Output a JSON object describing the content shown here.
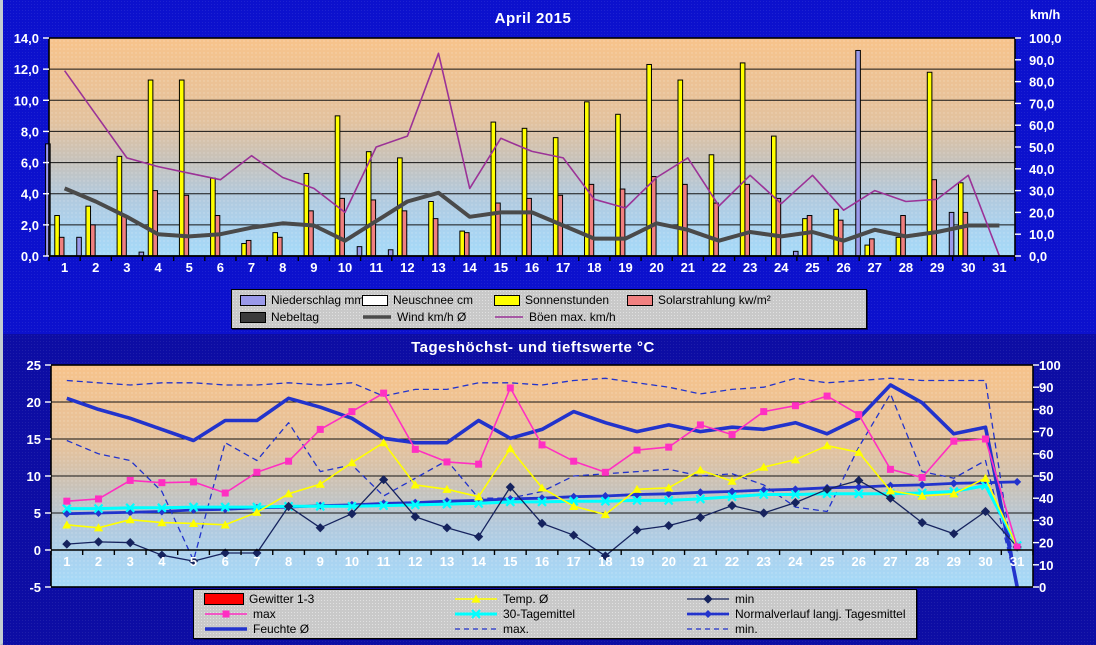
{
  "window": {
    "top_panel_color": "#0c11cd",
    "bottom_panel_color": "#0d0da4",
    "title_color": "#ffffff",
    "legend_background": "#c9c9c9"
  },
  "chart_data": [
    {
      "id": "precip-sun-wind",
      "type": "bar",
      "title": "April  2015",
      "right_axis_label": "km/h",
      "x": [
        1,
        2,
        3,
        4,
        5,
        6,
        7,
        8,
        9,
        10,
        11,
        12,
        13,
        14,
        15,
        16,
        17,
        18,
        19,
        20,
        21,
        22,
        23,
        24,
        25,
        26,
        27,
        28,
        29,
        30,
        31
      ],
      "axes": {
        "left": {
          "range": [
            0,
            14
          ],
          "step": 2,
          "labels": [
            "14,0",
            "12,0",
            "10,0",
            "8,0",
            "6,0",
            "4,0",
            "2,0",
            "0,0"
          ]
        },
        "right": {
          "range": [
            0,
            100
          ],
          "step": 10,
          "labels": [
            "100,0",
            "90,0",
            "80,0",
            "70,0",
            "60,0",
            "50,0",
            "40,0",
            "30,0",
            "20,0",
            "10,0",
            "0,0"
          ]
        }
      },
      "series": [
        {
          "name": "Niederschlag mm",
          "type": "bar",
          "axis": "left",
          "color": "#9a99ea",
          "values": [
            7.2,
            1.2,
            0,
            0.25,
            0,
            0,
            0,
            0,
            0,
            0,
            0.6,
            0.4,
            0,
            0,
            0,
            0,
            0,
            0,
            0,
            0,
            0,
            0,
            0,
            0,
            0.3,
            0,
            13.2,
            0,
            0,
            2.8,
            0
          ]
        },
        {
          "name": "Neuschnee cm",
          "type": "bar",
          "axis": "left",
          "color": "#ffffff",
          "values": [
            0,
            0,
            0,
            0,
            0,
            0,
            0,
            0,
            0,
            0,
            0,
            0,
            0,
            0,
            0,
            0,
            0,
            0,
            0,
            0,
            0,
            0,
            0,
            0,
            0,
            0,
            0,
            0,
            0,
            0,
            0
          ]
        },
        {
          "name": "Sonnenstunden",
          "type": "bar",
          "axis": "left",
          "color": "#ffff00",
          "values": [
            2.6,
            3.2,
            6.4,
            11.3,
            11.3,
            5.0,
            0.8,
            1.5,
            5.3,
            9.0,
            6.7,
            6.3,
            3.5,
            1.6,
            8.6,
            8.2,
            7.6,
            9.9,
            9.1,
            12.3,
            11.3,
            6.5,
            12.4,
            7.7,
            2.4,
            3.0,
            0.7,
            1.2,
            11.8,
            4.7,
            0
          ]
        },
        {
          "name": "Solarstrahlung kw/m²",
          "type": "bar",
          "axis": "left",
          "color": "#f08080",
          "values": [
            1.2,
            2.0,
            2.6,
            4.2,
            3.9,
            2.6,
            1.0,
            1.2,
            2.9,
            3.7,
            3.6,
            2.9,
            2.4,
            1.5,
            3.4,
            3.7,
            3.9,
            4.6,
            4.3,
            5.1,
            4.6,
            3.4,
            4.6,
            3.7,
            2.6,
            2.3,
            1.1,
            2.6,
            4.9,
            2.8,
            0
          ]
        },
        {
          "name": "Nebeltag",
          "type": "bar",
          "axis": "left",
          "color": "#3b3b3b",
          "values": [
            0,
            0,
            0,
            0,
            0,
            0,
            0,
            0,
            0,
            0,
            0,
            0,
            0,
            0,
            0,
            0,
            0,
            0,
            0,
            0,
            0,
            0,
            0,
            0,
            0,
            0,
            0,
            0,
            0,
            0,
            0
          ]
        },
        {
          "name": "Wind km/h Ø",
          "type": "line",
          "axis": "right",
          "color": "#4a4a4a",
          "width": 4,
          "values": [
            31,
            25,
            18,
            10,
            9,
            10,
            13,
            15,
            14,
            7,
            16,
            25,
            29,
            18,
            20,
            20,
            14,
            8,
            8,
            15,
            12,
            7,
            11,
            9,
            11,
            7,
            12,
            9,
            11,
            14,
            14
          ]
        },
        {
          "name": "Böen max. km/h",
          "type": "line",
          "axis": "right",
          "color": "#9b3297",
          "width": 1.6,
          "values": [
            85,
            65,
            45,
            41,
            38,
            35,
            46,
            36,
            31,
            20,
            50,
            55,
            93,
            31,
            54,
            48,
            45,
            26,
            22,
            36,
            45,
            23,
            37,
            24,
            37,
            21,
            30,
            25,
            26,
            37,
            0
          ]
        }
      ],
      "legend_rows": [
        [
          0,
          1,
          2,
          3
        ],
        [
          4,
          5,
          6
        ]
      ]
    },
    {
      "id": "temps-humidity",
      "type": "line",
      "title": "Tageshöchst- und tieftswerte °C",
      "x": [
        1,
        2,
        3,
        4,
        5,
        6,
        7,
        8,
        9,
        10,
        11,
        12,
        13,
        14,
        15,
        16,
        17,
        18,
        19,
        20,
        21,
        22,
        23,
        24,
        25,
        26,
        27,
        28,
        29,
        30,
        31
      ],
      "axes": {
        "left": {
          "range": [
            -5,
            25
          ],
          "step": 5,
          "labels": [
            "25",
            "20",
            "15",
            "10",
            "5",
            "0",
            "-5"
          ]
        },
        "right": {
          "range": [
            0,
            100
          ],
          "step": 10,
          "labels": [
            "100",
            "90",
            "80",
            "70",
            "60",
            "50",
            "40",
            "30",
            "20",
            "10",
            "0"
          ]
        }
      },
      "series": [
        {
          "name": "Gewitter 1-3",
          "type": "bar",
          "axis": "left",
          "color": "#ff0000",
          "values": [
            0,
            0,
            0,
            0,
            0,
            0,
            0,
            0,
            0,
            0,
            0,
            0,
            0,
            0,
            0,
            0,
            0,
            0,
            0,
            0,
            0,
            0,
            0,
            0,
            0,
            0,
            0,
            0,
            0,
            0,
            0
          ]
        },
        {
          "name": "max.",
          "type": "line",
          "axis": "right",
          "color": "#2233cc",
          "width": 1.3,
          "dash": true,
          "values": [
            93,
            92,
            91,
            92,
            92,
            91,
            91,
            92,
            91,
            92,
            86,
            89,
            89,
            92,
            92,
            91,
            93,
            94,
            92,
            90,
            87,
            89,
            90,
            94,
            92,
            93,
            94,
            93,
            93,
            93,
            0
          ]
        },
        {
          "name": "min.",
          "type": "line",
          "axis": "right",
          "color": "#2233cc",
          "width": 1.3,
          "dash": true,
          "values": [
            66,
            60,
            57,
            43,
            12,
            65,
            57,
            74,
            52,
            55,
            41,
            49,
            57,
            40,
            40,
            43,
            50,
            51,
            52,
            53,
            50,
            51,
            46,
            36,
            34,
            63,
            87,
            52,
            49,
            57,
            0
          ]
        },
        {
          "name": "Feuchte Ø",
          "type": "line",
          "axis": "right",
          "color": "#2233cc",
          "width": 3.6,
          "values": [
            85,
            80,
            76,
            71,
            66,
            75,
            75,
            85,
            81,
            76,
            67,
            65,
            65,
            75,
            67,
            71,
            79,
            74,
            70,
            73,
            70,
            72,
            71,
            74,
            69,
            76,
            91,
            83,
            69,
            72,
            0
          ]
        },
        {
          "name": "Normalverlauf langj. Tagesmittel",
          "type": "line",
          "axis": "left",
          "color": "#2233cc",
          "width": 2.8,
          "marker": "diamond-small",
          "values": [
            4.9,
            5.0,
            5.1,
            5.2,
            5.4,
            5.5,
            5.7,
            5.8,
            6.0,
            6.1,
            6.3,
            6.4,
            6.6,
            6.7,
            6.9,
            7.0,
            7.2,
            7.3,
            7.5,
            7.6,
            7.8,
            7.9,
            8.1,
            8.2,
            8.4,
            8.5,
            8.7,
            8.8,
            9.0,
            9.1,
            9.2
          ]
        },
        {
          "name": "30-Tagemittel",
          "type": "line",
          "axis": "left",
          "color": "#00ffff",
          "width": 3,
          "marker": "x",
          "values": [
            5.6,
            5.6,
            5.7,
            5.7,
            5.8,
            5.8,
            5.8,
            5.9,
            5.9,
            5.9,
            6.0,
            6.1,
            6.2,
            6.3,
            6.5,
            6.5,
            6.6,
            6.6,
            6.7,
            6.7,
            6.9,
            7.2,
            7.5,
            7.5,
            7.6,
            7.6,
            7.6,
            7.7,
            7.9,
            8.7,
            0.6
          ]
        },
        {
          "name": "min",
          "type": "line",
          "axis": "left",
          "color": "#16235e",
          "width": 1.3,
          "marker": "diamond",
          "values": [
            0.8,
            1.1,
            1.0,
            -0.7,
            -1.5,
            -0.4,
            -0.4,
            5.9,
            3.0,
            4.9,
            9.5,
            4.5,
            3.0,
            1.8,
            8.5,
            3.6,
            2.0,
            -0.8,
            2.7,
            3.3,
            4.4,
            6.0,
            5.0,
            6.4,
            8.2,
            9.4,
            7.0,
            3.7,
            2.2,
            5.2,
            0.4
          ]
        },
        {
          "name": "Temp. Ø",
          "type": "line",
          "axis": "left",
          "color": "#ffff00",
          "width": 1.6,
          "marker": "triangle",
          "values": [
            3.4,
            3.0,
            4.1,
            3.7,
            3.6,
            3.4,
            5.1,
            7.6,
            8.9,
            11.8,
            14.5,
            8.8,
            8.2,
            7.2,
            13.7,
            8.4,
            5.9,
            4.8,
            8.2,
            8.4,
            10.8,
            9.3,
            11.2,
            12.2,
            14.1,
            13.2,
            8.0,
            7.3,
            7.6,
            9.7,
            0.4
          ]
        },
        {
          "name": "max",
          "type": "line",
          "axis": "left",
          "color": "#ff2fc2",
          "width": 1.6,
          "marker": "square",
          "values": [
            6.6,
            6.9,
            9.4,
            9.1,
            9.2,
            7.7,
            10.5,
            12.0,
            16.3,
            18.7,
            21.2,
            13.6,
            11.9,
            11.6,
            21.9,
            14.2,
            12.0,
            10.5,
            13.5,
            13.9,
            16.9,
            15.6,
            18.7,
            19.5,
            20.8,
            18.3,
            10.9,
            9.8,
            14.7,
            15.0,
            0.4
          ]
        }
      ],
      "legend_rows": [
        [
          0,
          7,
          6
        ],
        [
          8,
          5,
          4
        ],
        [
          3,
          1,
          2
        ]
      ]
    }
  ]
}
